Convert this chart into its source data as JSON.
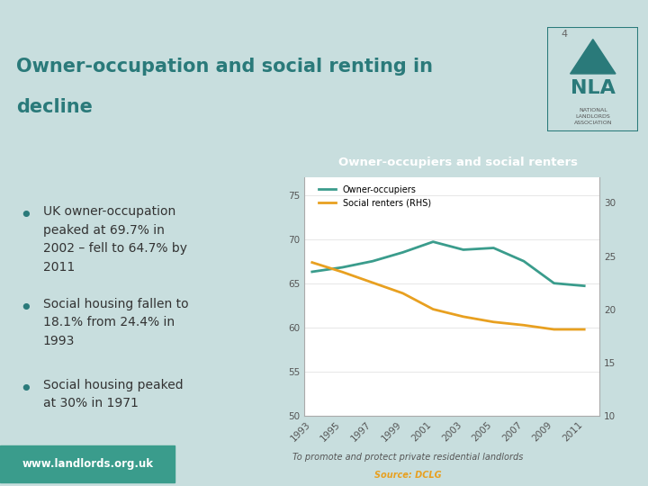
{
  "years": [
    1993,
    1995,
    1997,
    1999,
    2001,
    2003,
    2005,
    2007,
    2009,
    2011
  ],
  "owner_occupiers": [
    66.3,
    66.8,
    67.5,
    68.5,
    69.7,
    68.8,
    69.0,
    67.5,
    65.0,
    64.7
  ],
  "social_renters": [
    24.4,
    23.5,
    22.5,
    21.5,
    20.0,
    19.3,
    18.8,
    18.5,
    18.1,
    18.1
  ],
  "left_ylim": [
    50,
    77
  ],
  "right_ylim": [
    10,
    32.4
  ],
  "left_yticks": [
    50,
    55,
    60,
    65,
    70,
    75
  ],
  "right_yticks": [
    10,
    15,
    20,
    25,
    30
  ],
  "owner_color": "#3a9c8c",
  "social_color": "#e8a020",
  "chart_title": "Owner-occupiers and social renters",
  "chart_title_bg": "#2e8b84",
  "main_title_line1": "Owner-occupation and social renting in",
  "main_title_line2": "decline",
  "main_title_color": "#2a7a7a",
  "teal_stripe_color": "#4ab8b0",
  "body_bg": "#c8dede",
  "content_bg": "#deeaea",
  "right_panel_bg": "#ffffff",
  "footer_left_text": "www.landlords.org.uk",
  "footer_left_bg": "#3a9c8c",
  "footer_right_text": "To promote and protect private residential landlords",
  "footer_source_text": "Source: DCLG",
  "footer_source_color": "#e8a020",
  "bullet_color": "#2a7a7a",
  "bullet_texts": [
    "UK owner-occupation\npeaked at 69.7% in\n2002 – fell to 64.7% by\n2011",
    "Social housing fallen to\n18.1% from 24.4% in\n1993",
    "Social housing peaked\nat 30% in 1971"
  ],
  "legend_owner": "Owner-occupiers",
  "legend_social": "Social renters (RHS)",
  "tick_color": "#555555",
  "number_4": "4",
  "nla_color": "#2a7a7a",
  "header_white_bg": "#ffffff",
  "footer_text_color": "#555555"
}
